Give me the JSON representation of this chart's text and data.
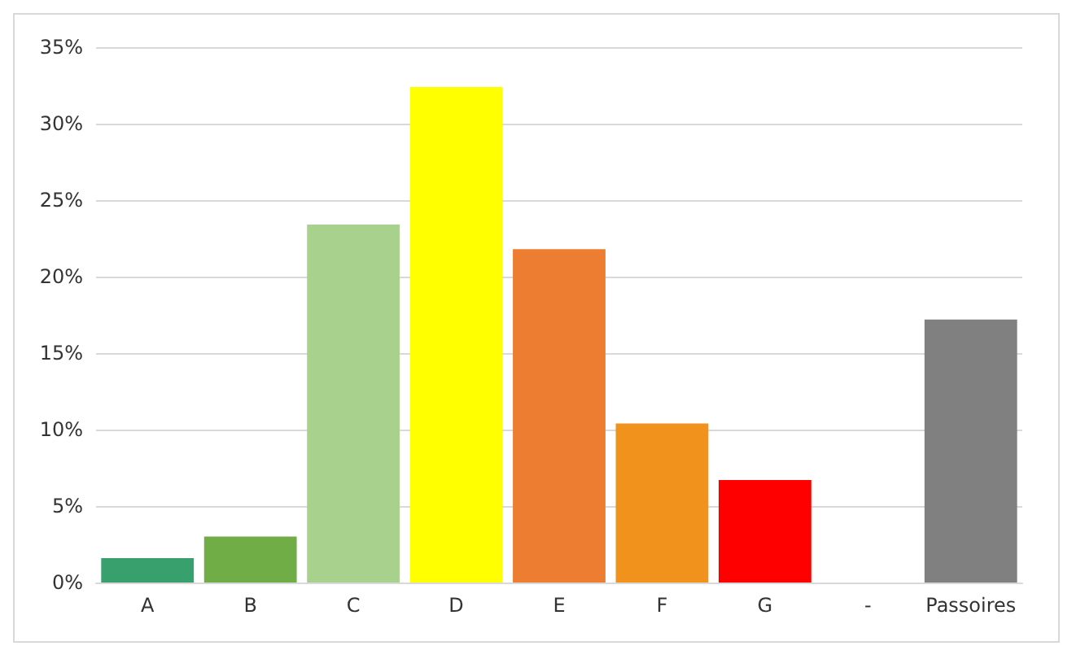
{
  "chart_data": {
    "type": "bar",
    "categories": [
      "A",
      "B",
      "C",
      "D",
      "E",
      "F",
      "G",
      "-",
      "Passoires"
    ],
    "values": [
      1.6,
      3.0,
      23.4,
      32.4,
      21.8,
      10.4,
      6.7,
      0,
      17.2
    ],
    "colors": [
      "#37a06c",
      "#70ad47",
      "#a9d18e",
      "#ffff00",
      "#ed7d31",
      "#f0921c",
      "#ff0000",
      "#808080",
      "#808080"
    ],
    "ylim": [
      0,
      35
    ],
    "yticks": [
      {
        "value": 0,
        "label": "0%"
      },
      {
        "value": 5,
        "label": "5%"
      },
      {
        "value": 10,
        "label": "10%"
      },
      {
        "value": 15,
        "label": "15%"
      },
      {
        "value": 20,
        "label": "20%"
      },
      {
        "value": 25,
        "label": "25%"
      },
      {
        "value": 30,
        "label": "30%"
      },
      {
        "value": 35,
        "label": "35%"
      }
    ],
    "grid": true
  }
}
